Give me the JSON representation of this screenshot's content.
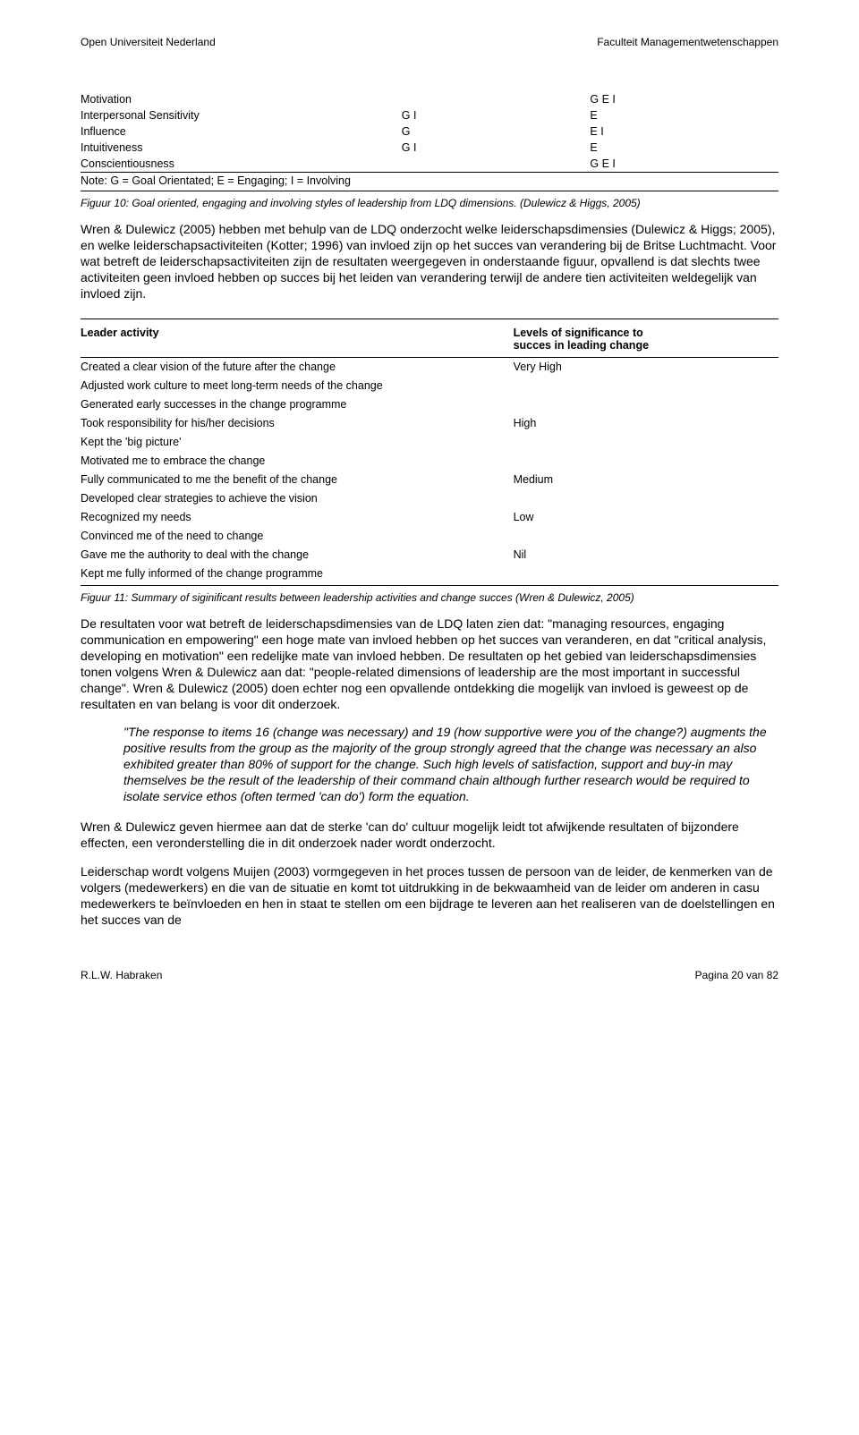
{
  "header": {
    "left": "Open Universiteit Nederland",
    "right": "Faculteit Managementwetenschappen"
  },
  "table1": {
    "rows": [
      {
        "c1": "Motivation",
        "c2": "",
        "c3": "G E I"
      },
      {
        "c1": "Interpersonal Sensitivity",
        "c2": "G I",
        "c3": "E"
      },
      {
        "c1": "Influence",
        "c2": "G",
        "c3": "E I"
      },
      {
        "c1": "Intuitiveness",
        "c2": "G I",
        "c3": "E"
      },
      {
        "c1": "Conscientiousness",
        "c2": "",
        "c3": "G E I"
      }
    ],
    "note": "Note: G = Goal Orientated; E = Engaging; I = Involving"
  },
  "caption1": "Figuur 10: Goal oriented, engaging and involving styles of leadership from LDQ dimensions. (Dulewicz & Higgs, 2005)",
  "para1": "Wren & Dulewicz (2005) hebben met behulp van de LDQ onderzocht welke leiderschapsdimensies (Dulewicz & Higgs; 2005), en welke leiderschapsactiviteiten (Kotter; 1996) van invloed zijn op het succes van verandering bij de Britse Luchtmacht. Voor wat betreft de leiderschapsactiviteiten zijn de resultaten weergegeven in onderstaande figuur, opvallend is dat slechts twee activiteiten geen invloed hebben op succes bij het leiden van verandering terwijl de andere tien activiteiten weldegelijk van invloed zijn.",
  "table2": {
    "head": {
      "c1": "Leader activity",
      "c2a": "Levels of significance to",
      "c2b": "succes in leading change"
    },
    "rows": [
      {
        "c1": "Created a clear vision of the future after the change",
        "c2": "Very High"
      },
      {
        "c1": "Adjusted work culture to meet long-term needs of the change",
        "c2": ""
      },
      {
        "c1": "Generated early successes in the change programme",
        "c2": ""
      },
      {
        "c1": "Took responsibility for his/her decisions",
        "c2": "High"
      },
      {
        "c1": "Kept the 'big picture'",
        "c2": ""
      },
      {
        "c1": "Motivated me to embrace the change",
        "c2": ""
      },
      {
        "c1": "Fully communicated to me the benefit of the change",
        "c2": "Medium"
      },
      {
        "c1": "Developed clear strategies to achieve the vision",
        "c2": ""
      },
      {
        "c1": "Recognized my needs",
        "c2": "Low"
      },
      {
        "c1": "Convinced me of the need to change",
        "c2": ""
      },
      {
        "c1": "Gave me the authority to deal with the change",
        "c2": "Nil"
      },
      {
        "c1": "Kept me fully informed of the change programme",
        "c2": ""
      }
    ]
  },
  "caption2": "Figuur 11: Summary of siginificant results between leadership activities and change succes (Wren & Dulewicz, 2005)",
  "para2": "De resultaten voor wat betreft de leiderschapsdimensies van de LDQ laten zien dat: \"managing resources, engaging communication en empowering\" een hoge mate van invloed hebben op het succes van veranderen, en dat \"critical analysis, developing en motivation\" een redelijke mate van invloed hebben. De resultaten op het gebied van leiderschapsdimensies tonen volgens Wren & Dulewicz aan dat: \"people-related dimensions of leadership are the most important in successful change\". Wren & Dulewicz (2005) doen echter nog een opvallende ontdekking die mogelijk van invloed is geweest op de resultaten en van belang is voor dit onderzoek.",
  "quote": "\"The response to items 16 (change was necessary) and 19 (how supportive were you of the change?) augments the positive results from the group as the majority of the group strongly agreed that the change was necessary an also exhibited greater than 80% of support for the change. Such high levels of satisfaction, support and buy-in may themselves be the result of the leadership of their command chain although further research would be required to isolate service ethos (often termed 'can do') form the equation.",
  "para3": "Wren & Dulewicz geven hiermee aan dat de sterke 'can do' cultuur mogelijk leidt tot afwijkende resultaten of bijzondere effecten, een veronderstelling die in dit onderzoek nader wordt onderzocht.",
  "para4": "Leiderschap wordt volgens Muijen (2003) vormgegeven in het proces tussen de persoon van de leider, de kenmerken van de volgers (medewerkers) en die van de situatie en komt tot uitdrukking in de bekwaamheid van de leider om anderen in casu medewerkers te beïnvloeden en hen in staat te stellen om een bijdrage te leveren aan het realiseren van de doelstellingen en het succes van de",
  "footer": {
    "left": "R.L.W. Habraken",
    "right": "Pagina 20 van 82"
  }
}
